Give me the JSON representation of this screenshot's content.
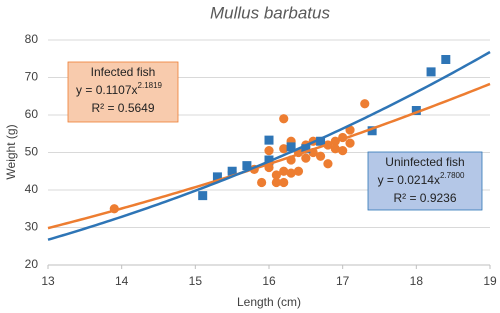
{
  "chart_data": {
    "type": "scatter",
    "title": "Mullus barbatus",
    "x_label": "Length (cm)",
    "y_label": "Weight (g)",
    "xlim": [
      13,
      19
    ],
    "xticks": [
      13,
      14,
      15,
      16,
      17,
      18,
      19
    ],
    "ylim": [
      20,
      80
    ],
    "yticks": [
      20,
      30,
      40,
      50,
      60,
      70,
      80
    ],
    "grid": true,
    "series": [
      {
        "name": "Infected fish",
        "color": "#ed7d31",
        "marker": "circle",
        "x": [
          13.9,
          15.5,
          15.8,
          15.9,
          16.0,
          16.0,
          16.0,
          16.1,
          16.1,
          16.2,
          16.2,
          16.2,
          16.2,
          16.3,
          16.3,
          16.3,
          16.4,
          16.4,
          16.5,
          16.5,
          16.6,
          16.6,
          16.7,
          16.8,
          16.8,
          16.9,
          16.9,
          17.0,
          17.0,
          17.1,
          17.1,
          17.3
        ],
        "values": [
          35,
          44.8,
          45.5,
          42,
          46,
          50.5,
          47,
          44,
          42,
          59,
          51,
          45,
          42,
          48,
          53,
          44.5,
          50,
          45,
          52,
          48.5,
          53,
          50,
          49,
          47,
          52,
          53,
          51,
          50.5,
          54,
          56,
          52.5,
          63
        ],
        "fit": {
          "equation": "y = 0.1107x",
          "exponent_label": "2.1819",
          "r2_label": "R² = 0.5649",
          "a": 0.1107,
          "b": 2.1819
        }
      },
      {
        "name": "Uninfected fish",
        "color": "#2e75b6",
        "marker": "square",
        "x": [
          15.1,
          15.3,
          15.5,
          15.7,
          16.0,
          16.0,
          16.3,
          16.5,
          16.7,
          17.4,
          18.0,
          18.2,
          18.4
        ],
        "values": [
          38.5,
          43.5,
          45,
          46.5,
          48,
          53.3,
          51.5,
          51,
          53,
          55.8,
          61.2,
          71.5,
          74.8
        ],
        "fit": {
          "equation": "y = 0.0214x",
          "exponent_label": "2.7800",
          "r2_label": "R² = 0.9236",
          "a": 0.0214,
          "b": 2.78
        }
      }
    ]
  }
}
